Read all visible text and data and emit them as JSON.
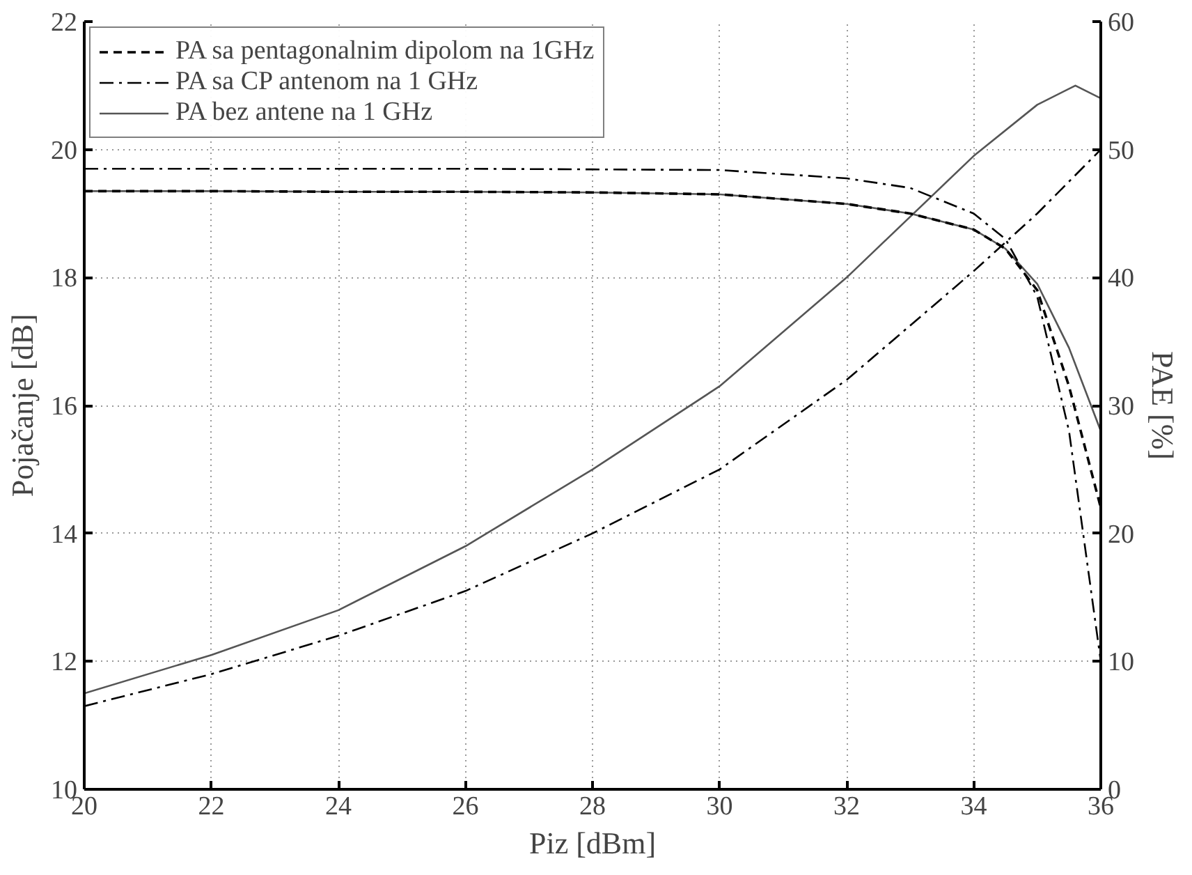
{
  "chart_data": {
    "type": "line",
    "xlabel": "Piz [dBm]",
    "ylabel": "Pojačanje [dB]",
    "y2label": "PAE [%]",
    "xlim": [
      20,
      36
    ],
    "xticks": [
      20,
      22,
      24,
      26,
      28,
      30,
      32,
      34,
      36
    ],
    "ylim": [
      10,
      22
    ],
    "yticks": [
      10,
      12,
      14,
      16,
      18,
      20,
      22
    ],
    "y2lim": [
      0,
      60
    ],
    "y2ticks": [
      0,
      10,
      20,
      30,
      40,
      50,
      60
    ],
    "grid": true,
    "legend": "top",
    "series": [
      {
        "name": "PA sa pentagonalnim dipolom na 1GHz",
        "color": "#000000",
        "line_style": "dashed",
        "x": [
          20,
          22,
          24,
          26,
          28,
          30,
          32,
          33,
          34,
          34.5,
          35,
          35.5,
          36
        ],
        "values": [
          19.35,
          19.35,
          19.34,
          19.34,
          19.33,
          19.3,
          19.15,
          19.0,
          18.75,
          18.45,
          17.8,
          16.3,
          14.4
        ]
      },
      {
        "name": "PA sa CP antenom na 1 GHz",
        "color": "#000000",
        "line_style": "dashdot",
        "x": [
          20,
          22,
          24,
          26,
          28,
          30,
          32,
          33,
          34,
          34.5,
          35,
          35.5,
          36
        ],
        "values": [
          19.7,
          19.7,
          19.7,
          19.7,
          19.69,
          19.68,
          19.55,
          19.4,
          19.0,
          18.6,
          17.7,
          15.6,
          12.0
        ]
      },
      {
        "name": "PA bez antene na 1 GHz",
        "color": "#555555",
        "line_style": "solid",
        "x": [
          20,
          22,
          24,
          26,
          28,
          30,
          32,
          33,
          34,
          34.5,
          35,
          35.5,
          36
        ],
        "values": [
          19.35,
          19.35,
          19.34,
          19.34,
          19.33,
          19.3,
          19.15,
          19.0,
          18.75,
          18.45,
          17.9,
          16.9,
          15.6
        ]
      },
      {
        "color": "#000000",
        "line_style": "dashdot",
        "axis": "y2",
        "x": [
          20,
          22,
          24,
          26,
          28,
          30,
          32,
          34,
          35,
          36
        ],
        "values": [
          6.5,
          9,
          12,
          15.5,
          20,
          25,
          32,
          40.5,
          45,
          50
        ]
      },
      {
        "color": "#555555",
        "line_style": "solid",
        "axis": "y2",
        "x": [
          20,
          22,
          24,
          26,
          28,
          30,
          32,
          34,
          35,
          35.6,
          36
        ],
        "values": [
          7.5,
          10.5,
          14,
          19,
          25,
          31.5,
          40,
          49.5,
          53.5,
          55,
          54
        ]
      }
    ]
  }
}
